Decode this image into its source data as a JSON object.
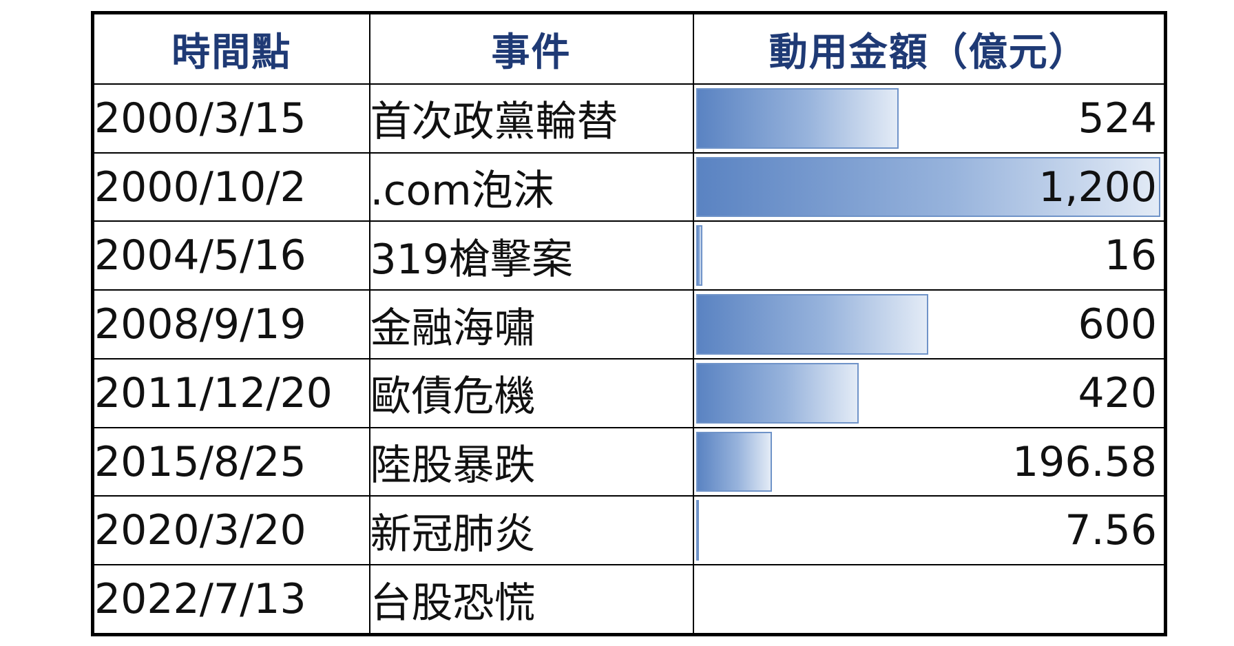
{
  "chart_data": {
    "type": "table",
    "columns": [
      "時間點",
      "事件",
      "動用金額（億元）"
    ],
    "rows": [
      {
        "date": "2000/3/15",
        "event": "首次政黨輪替",
        "amount": 524,
        "amount_label": "524"
      },
      {
        "date": "2000/10/2",
        "event": ".com泡沫",
        "amount": 1200,
        "amount_label": "1,200"
      },
      {
        "date": "2004/5/16",
        "event": "319槍擊案",
        "amount": 16,
        "amount_label": "16"
      },
      {
        "date": "2008/9/19",
        "event": "金融海嘯",
        "amount": 600,
        "amount_label": "600"
      },
      {
        "date": "2011/12/20",
        "event": "歐債危機",
        "amount": 420,
        "amount_label": "420"
      },
      {
        "date": "2015/8/25",
        "event": "陸股暴跌",
        "amount": 196.58,
        "amount_label": "196.58"
      },
      {
        "date": "2020/3/20",
        "event": "新冠肺炎",
        "amount": 7.56,
        "amount_label": "7.56"
      },
      {
        "date": "2022/7/13",
        "event": "台股恐慌",
        "amount": null,
        "amount_label": ""
      }
    ],
    "max_value": 1200,
    "bar_color": "#5a83c2",
    "header_color": "#1f3a75"
  }
}
